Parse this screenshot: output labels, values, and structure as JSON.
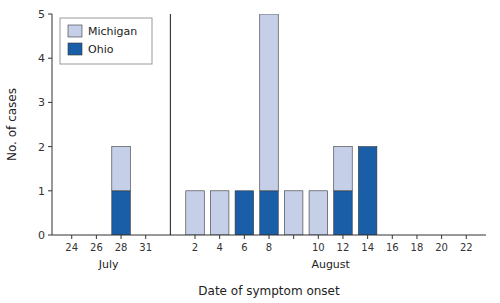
{
  "chart_data": {
    "type": "bar",
    "stacked": true,
    "categories": [
      "24",
      "26",
      "28",
      "31",
      "2",
      "4",
      "6",
      "8",
      null,
      "10",
      "12",
      "14",
      "16",
      "18",
      "20",
      "22"
    ],
    "series": [
      {
        "name": "Ohio",
        "color": "#1a5ea8",
        "values": [
          0,
          0,
          1,
          0,
          0,
          0,
          1,
          1,
          0,
          0,
          1,
          2,
          0,
          0,
          0,
          0
        ]
      },
      {
        "name": "Michigan",
        "color": "#c5cfe8",
        "values": [
          0,
          0,
          1,
          0,
          1,
          1,
          0,
          4,
          1,
          1,
          1,
          0,
          0,
          0,
          0,
          0
        ]
      }
    ],
    "xlabel": "Date of symptom onset",
    "ylabel": "No. of cases",
    "ylim": [
      0,
      5
    ],
    "yticks": [
      0,
      1,
      2,
      3,
      4,
      5
    ],
    "grid": false,
    "legend": "upper left",
    "annotations": [
      {
        "text": "July",
        "categories": [
          "24",
          "31"
        ]
      },
      {
        "text": "August",
        "categories": [
          "2",
          "22"
        ]
      }
    ]
  }
}
